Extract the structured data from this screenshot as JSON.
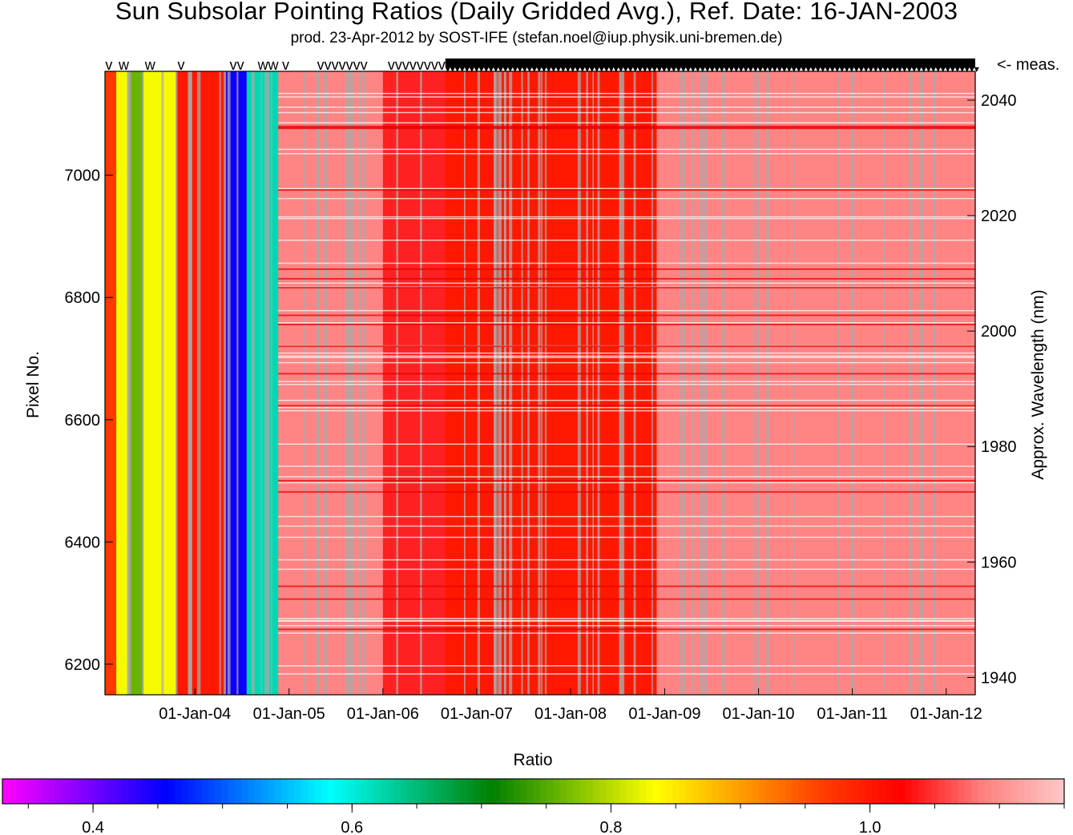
{
  "title": "Sun Subsolar Pointing Ratios (Daily Gridded Avg.), Ref. Date: 16-JAN-2003",
  "subtitle": "prod. 23-Apr-2012 by SOST-IFE (stefan.noel@iup.physik.uni-bremen.de)",
  "chart_data": {
    "type": "heatmap",
    "x_axis": {
      "label": "",
      "ticks": [
        "01-Jan-04",
        "01-Jan-05",
        "01-Jan-06",
        "01-Jan-07",
        "01-Jan-08",
        "01-Jan-09",
        "01-Jan-10",
        "01-Jan-11",
        "01-Jan-12"
      ],
      "range": [
        "16-Jan-2003",
        "23-Apr-2012"
      ]
    },
    "y_left": {
      "label": "Pixel No.",
      "ticks": [
        6200,
        6400,
        6600,
        6800,
        7000
      ],
      "range": [
        6150,
        7170
      ]
    },
    "y_right": {
      "label": "Approx. Wavelength (nm)",
      "ticks": [
        1940,
        1960,
        1980,
        2000,
        2020,
        2040
      ],
      "range": [
        1937,
        2045
      ]
    },
    "meas_label": "<- meas.",
    "meas_markers": [
      {
        "date": "2003-01-17",
        "mark": "v"
      },
      {
        "date": "2003-03-10",
        "mark": "w"
      },
      {
        "date": "2003-06-20",
        "mark": "w"
      },
      {
        "date": "2003-10-25",
        "mark": "v"
      },
      {
        "date": "2004-05-15",
        "mark": "vv"
      },
      {
        "date": "2004-09-01",
        "mark": "ww"
      },
      {
        "date": "2004-12-05",
        "mark": "v"
      },
      {
        "date": "2005-04-20",
        "mark": "vvvvvvv"
      },
      {
        "date": "2006-01-20",
        "mark": "vvvvvvvv"
      }
    ],
    "meas_dense_range": [
      "2006-09-01",
      "2012-04-23"
    ],
    "colorbar": {
      "label": "Ratio",
      "range": [
        0.33,
        1.15
      ],
      "ticks": [
        0.4,
        0.6,
        0.8,
        1.0
      ],
      "tick_labels": [
        "0.4",
        "0.6",
        "0.8",
        "1.0"
      ],
      "colors": [
        "#ff00ff",
        "#8000ff",
        "#0000ff",
        "#0080ff",
        "#00ffff",
        "#00c080",
        "#008000",
        "#80c000",
        "#ffff00",
        "#ffa000",
        "#ff4000",
        "#ff0000",
        "#ff8080",
        "#ffc8c8"
      ]
    },
    "column_ratios": [
      {
        "from": "2003-01-16",
        "to": "2003-03-01",
        "ratio": 0.97
      },
      {
        "from": "2003-03-01",
        "to": "2003-04-20",
        "ratio": 0.83
      },
      {
        "from": "2003-04-20",
        "to": "2003-06-15",
        "ratio": 0.76
      },
      {
        "from": "2003-06-15",
        "to": "2003-10-20",
        "ratio": 0.83
      },
      {
        "from": "2003-10-20",
        "to": "2004-05-01",
        "ratio": 1.0
      },
      {
        "from": "2004-05-01",
        "to": "2004-07-20",
        "ratio": 0.45
      },
      {
        "from": "2004-07-20",
        "to": "2004-11-20",
        "ratio": 0.62
      },
      {
        "from": "2004-11-20",
        "to": "2006-01-01",
        "ratio": 1.09
      },
      {
        "from": "2006-01-01",
        "to": "2006-09-01",
        "ratio": 1.04
      },
      {
        "from": "2006-09-01",
        "to": "2008-12-01",
        "ratio": 1.0
      },
      {
        "from": "2008-12-01",
        "to": "2012-04-23",
        "ratio": 1.09
      }
    ],
    "grid": false,
    "legend": "colorbar-bottom"
  }
}
